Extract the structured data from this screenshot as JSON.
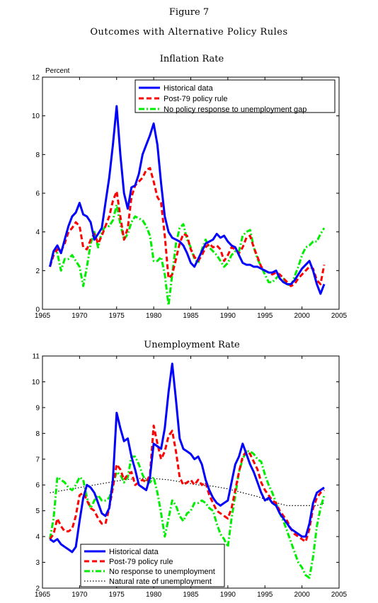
{
  "figure": {
    "number": "Figure 7",
    "title": "Outcomes with Alternative Policy Rules"
  },
  "chart_data": [
    {
      "type": "line",
      "title": "Inflation Rate",
      "ylabel": "Percent",
      "xlabel": "",
      "xlim": [
        1965,
        2005
      ],
      "ylim": [
        0,
        12
      ],
      "xticks": [
        1965,
        1970,
        1975,
        1980,
        1985,
        1990,
        1995,
        2000,
        2005
      ],
      "yticks": [
        0,
        2,
        4,
        6,
        8,
        10,
        12
      ],
      "grid": false,
      "legend": "top-right",
      "series": [
        {
          "name": "Historical data",
          "color": "#0000ff",
          "style": "solid",
          "x": [
            1966,
            1966.5,
            1967,
            1967.5,
            1968,
            1968.5,
            1969,
            1969.5,
            1970,
            1970.5,
            1971,
            1971.5,
            1972,
            1972.5,
            1973,
            1973.5,
            1974,
            1974.5,
            1975,
            1975.5,
            1976,
            1976.5,
            1977,
            1977.5,
            1978,
            1978.5,
            1979,
            1979.5,
            1980,
            1980.5,
            1981,
            1981.5,
            1982,
            1982.5,
            1983,
            1983.5,
            1984,
            1984.5,
            1985,
            1985.5,
            1986,
            1986.5,
            1987,
            1987.5,
            1988,
            1988.5,
            1989,
            1989.5,
            1990,
            1990.5,
            1991,
            1991.5,
            1992,
            1992.5,
            1993,
            1993.5,
            1994,
            1994.5,
            1995,
            1995.5,
            1996,
            1996.5,
            1997,
            1997.5,
            1998,
            1998.5,
            1999,
            1999.5,
            2000,
            2000.5,
            2001,
            2001.5,
            2002,
            2002.5,
            2003
          ],
          "y": [
            2.2,
            3.0,
            3.3,
            2.9,
            3.6,
            4.3,
            4.8,
            5.0,
            5.5,
            4.9,
            4.8,
            4.5,
            3.6,
            3.9,
            4.2,
            5.5,
            6.8,
            8.5,
            10.5,
            8.0,
            6.0,
            5.2,
            6.3,
            6.4,
            7.0,
            8.0,
            8.5,
            9.0,
            9.6,
            8.5,
            6.5,
            4.8,
            4.0,
            3.7,
            3.6,
            3.5,
            3.3,
            2.9,
            2.4,
            2.2,
            2.6,
            3.0,
            3.4,
            3.5,
            3.6,
            3.9,
            3.7,
            3.8,
            3.5,
            3.3,
            3.2,
            2.8,
            2.4,
            2.3,
            2.3,
            2.2,
            2.2,
            2.1,
            2.0,
            1.9,
            1.9,
            2.0,
            1.6,
            1.4,
            1.3,
            1.3,
            1.5,
            1.8,
            2.1,
            2.3,
            2.5,
            2.0,
            1.3,
            0.8,
            1.3
          ]
        },
        {
          "name": "Post-79 policy rule",
          "color": "#ff0000",
          "style": "dashed",
          "x": [
            1966,
            1966.5,
            1967,
            1967.5,
            1968,
            1968.5,
            1969,
            1969.5,
            1970,
            1970.5,
            1971,
            1971.5,
            1972,
            1972.5,
            1973,
            1973.5,
            1974,
            1974.5,
            1975,
            1975.5,
            1976,
            1976.5,
            1977,
            1977.5,
            1978,
            1978.5,
            1979,
            1979.5,
            1980,
            1980.5,
            1981,
            1981.5,
            1982,
            1982.5,
            1983,
            1983.5,
            1984,
            1984.5,
            1985,
            1985.5,
            1986,
            1986.5,
            1987,
            1987.5,
            1988,
            1988.5,
            1989,
            1989.5,
            1990,
            1990.5,
            1991,
            1991.5,
            1992,
            1992.5,
            1993,
            1993.5,
            1994,
            1994.5,
            1995,
            1995.5,
            1996,
            1996.5,
            1997,
            1997.5,
            1998,
            1998.5,
            1999,
            1999.5,
            2000,
            2000.5,
            2001,
            2001.5,
            2002,
            2002.5,
            2003
          ],
          "y": [
            2.2,
            2.8,
            3.1,
            3.0,
            3.4,
            4.0,
            4.2,
            4.5,
            4.3,
            3.2,
            3.1,
            3.6,
            3.9,
            3.4,
            3.8,
            4.3,
            4.8,
            5.6,
            6.1,
            4.8,
            3.6,
            4.2,
            5.8,
            6.4,
            6.6,
            6.8,
            7.2,
            7.3,
            6.6,
            5.8,
            5.5,
            3.8,
            1.6,
            1.8,
            2.6,
            3.4,
            3.9,
            3.8,
            3.1,
            2.7,
            2.5,
            2.8,
            3.2,
            3.4,
            3.2,
            3.3,
            3.1,
            2.5,
            2.8,
            3.2,
            3.1,
            2.9,
            3.2,
            3.7,
            3.8,
            3.2,
            2.7,
            2.2,
            2.0,
            1.9,
            1.8,
            1.9,
            1.8,
            1.6,
            1.4,
            1.2,
            1.3,
            1.6,
            1.8,
            2.0,
            2.2,
            2.1,
            1.5,
            1.3,
            2.3
          ]
        },
        {
          "name": "No policy response to unemployment gap",
          "color": "#00ee00",
          "style": "dashdot",
          "x": [
            1966,
            1966.5,
            1967,
            1967.5,
            1968,
            1968.5,
            1969,
            1969.5,
            1970,
            1970.5,
            1971,
            1971.5,
            1972,
            1972.5,
            1973,
            1973.5,
            1974,
            1974.5,
            1975,
            1975.5,
            1976,
            1976.5,
            1977,
            1977.5,
            1978,
            1978.5,
            1979,
            1979.5,
            1980,
            1980.5,
            1981,
            1981.5,
            1982,
            1982.5,
            1983,
            1983.5,
            1984,
            1984.5,
            1985,
            1985.5,
            1986,
            1986.5,
            1987,
            1987.5,
            1988,
            1988.5,
            1989,
            1989.5,
            1990,
            1990.5,
            1991,
            1991.5,
            1992,
            1992.5,
            1993,
            1993.5,
            1994,
            1994.5,
            1995,
            1995.5,
            1996,
            1996.5,
            1997,
            1997.5,
            1998,
            1998.5,
            1999,
            1999.5,
            2000,
            2000.5,
            2001,
            2001.5,
            2002,
            2002.5,
            2003
          ],
          "y": [
            2.2,
            3.0,
            2.9,
            2.0,
            2.6,
            2.6,
            2.8,
            2.5,
            2.2,
            1.2,
            2.2,
            3.4,
            4.0,
            3.2,
            4.0,
            4.3,
            4.3,
            4.6,
            5.4,
            4.4,
            3.6,
            3.9,
            4.5,
            4.8,
            4.7,
            4.6,
            4.3,
            3.8,
            2.5,
            2.5,
            2.7,
            1.8,
            0.2,
            1.8,
            3.4,
            4.2,
            4.4,
            3.6,
            3.2,
            2.6,
            2.4,
            3.1,
            3.6,
            3.2,
            3.0,
            2.8,
            2.5,
            2.2,
            2.4,
            2.8,
            3.0,
            3.0,
            3.8,
            4.0,
            4.1,
            3.2,
            2.6,
            2.2,
            1.8,
            1.4,
            1.4,
            1.6,
            1.8,
            1.6,
            1.3,
            1.2,
            1.7,
            2.2,
            2.8,
            3.2,
            3.3,
            3.5,
            3.5,
            3.9,
            4.2
          ]
        }
      ]
    },
    {
      "type": "line",
      "title": "Unemployment Rate",
      "ylabel": "",
      "xlabel": "",
      "xlim": [
        1965,
        2005
      ],
      "ylim": [
        2,
        11
      ],
      "xticks": [
        1965,
        1970,
        1975,
        1980,
        1985,
        1990,
        1995,
        2000,
        2005
      ],
      "yticks": [
        2,
        3,
        4,
        5,
        6,
        7,
        8,
        9,
        10,
        11
      ],
      "grid": false,
      "legend": "bottom-left",
      "series": [
        {
          "name": "Historical data",
          "color": "#0000ff",
          "style": "solid",
          "x": [
            1966,
            1966.5,
            1967,
            1967.5,
            1968,
            1968.5,
            1969,
            1969.5,
            1970,
            1970.5,
            1971,
            1971.5,
            1972,
            1972.5,
            1973,
            1973.5,
            1974,
            1974.5,
            1975,
            1975.5,
            1976,
            1976.5,
            1977,
            1977.5,
            1978,
            1978.5,
            1979,
            1979.5,
            1980,
            1980.5,
            1981,
            1981.5,
            1982,
            1982.5,
            1983,
            1983.5,
            1984,
            1984.5,
            1985,
            1985.5,
            1986,
            1986.5,
            1987,
            1987.5,
            1988,
            1988.5,
            1989,
            1989.5,
            1990,
            1990.5,
            1991,
            1991.5,
            1992,
            1992.5,
            1993,
            1993.5,
            1994,
            1994.5,
            1995,
            1995.5,
            1996,
            1996.5,
            1997,
            1997.5,
            1998,
            1998.5,
            1999,
            1999.5,
            2000,
            2000.5,
            2001,
            2001.5,
            2002,
            2002.5,
            2003
          ],
          "y": [
            3.9,
            3.8,
            3.9,
            3.7,
            3.6,
            3.5,
            3.4,
            3.6,
            4.6,
            5.5,
            6.0,
            5.9,
            5.7,
            5.3,
            4.9,
            4.8,
            5.1,
            6.2,
            8.8,
            8.2,
            7.7,
            7.8,
            7.1,
            6.6,
            6.0,
            5.9,
            5.8,
            6.3,
            7.6,
            7.5,
            7.4,
            8.2,
            9.6,
            10.7,
            9.3,
            7.8,
            7.4,
            7.3,
            7.2,
            7.0,
            7.1,
            6.8,
            6.2,
            5.8,
            5.5,
            5.3,
            5.2,
            5.3,
            5.4,
            6.1,
            6.8,
            7.1,
            7.6,
            7.2,
            6.8,
            6.5,
            6.1,
            5.7,
            5.4,
            5.5,
            5.3,
            5.2,
            4.9,
            4.7,
            4.5,
            4.3,
            4.2,
            4.1,
            4.0,
            4.0,
            4.5,
            5.3,
            5.7,
            5.8,
            5.9
          ]
        },
        {
          "name": "Post-79 policy rule",
          "color": "#ff0000",
          "style": "dashed",
          "x": [
            1966,
            1966.5,
            1967,
            1967.5,
            1968,
            1968.5,
            1969,
            1969.5,
            1970,
            1970.5,
            1971,
            1971.5,
            1972,
            1972.5,
            1973,
            1973.5,
            1974,
            1974.5,
            1975,
            1975.5,
            1976,
            1976.5,
            1977,
            1977.5,
            1978,
            1978.5,
            1979,
            1979.5,
            1980,
            1980.5,
            1981,
            1981.5,
            1982,
            1982.5,
            1983,
            1983.5,
            1984,
            1984.5,
            1985,
            1985.5,
            1986,
            1986.5,
            1987,
            1987.5,
            1988,
            1988.5,
            1989,
            1989.5,
            1990,
            1990.5,
            1991,
            1991.5,
            1992,
            1992.5,
            1993,
            1993.5,
            1994,
            1994.5,
            1995,
            1995.5,
            1996,
            1996.5,
            1997,
            1997.5,
            1998,
            1998.5,
            1999,
            1999.5,
            2000,
            2000.5,
            2001,
            2001.5,
            2002,
            2002.5,
            2003
          ],
          "y": [
            3.9,
            4.1,
            4.7,
            4.4,
            4.2,
            4.2,
            4.3,
            4.8,
            5.6,
            5.7,
            5.4,
            5.1,
            5.0,
            4.7,
            4.5,
            4.5,
            5.1,
            5.9,
            6.8,
            6.6,
            6.2,
            6.4,
            6.5,
            6.0,
            6.1,
            6.2,
            6.1,
            6.4,
            8.3,
            7.6,
            7.0,
            7.3,
            7.9,
            8.1,
            7.3,
            6.3,
            6.0,
            6.1,
            6.2,
            6.0,
            6.2,
            6.0,
            6.1,
            5.6,
            5.3,
            5.0,
            4.9,
            4.8,
            4.7,
            5.1,
            5.8,
            6.5,
            7.1,
            7.3,
            7.2,
            6.9,
            6.6,
            6.1,
            5.8,
            5.6,
            5.4,
            5.3,
            5.0,
            4.8,
            4.6,
            4.3,
            4.1,
            4.0,
            3.9,
            3.8,
            4.3,
            5.1,
            5.5,
            5.7,
            5.8
          ]
        },
        {
          "name": "No response to unemployment",
          "color": "#00ee00",
          "style": "dashdot",
          "x": [
            1966,
            1966.5,
            1967,
            1967.5,
            1968,
            1968.5,
            1969,
            1969.5,
            1970,
            1970.5,
            1971,
            1971.5,
            1972,
            1972.5,
            1973,
            1973.5,
            1974,
            1974.5,
            1975,
            1975.5,
            1976,
            1976.5,
            1977,
            1977.5,
            1978,
            1978.5,
            1979,
            1979.5,
            1980,
            1980.5,
            1981,
            1981.5,
            1982,
            1982.5,
            1983,
            1983.5,
            1984,
            1984.5,
            1985,
            1985.5,
            1986,
            1986.5,
            1987,
            1987.5,
            1988,
            1988.5,
            1989,
            1989.5,
            1990,
            1990.5,
            1991,
            1991.5,
            1992,
            1992.5,
            1993,
            1993.5,
            1994,
            1994.5,
            1995,
            1995.5,
            1996,
            1996.5,
            1997,
            1997.5,
            1998,
            1998.5,
            1999,
            1999.5,
            2000,
            2000.5,
            2001,
            2001.5,
            2002,
            2002.5,
            2003
          ],
          "y": [
            3.9,
            4.7,
            6.3,
            6.2,
            6.1,
            5.9,
            5.8,
            6.0,
            6.3,
            6.2,
            5.5,
            5.1,
            5.4,
            5.6,
            5.4,
            5.4,
            5.5,
            6.0,
            6.5,
            6.4,
            6.1,
            6.3,
            7.1,
            7.1,
            6.8,
            6.4,
            6.1,
            6.1,
            6.3,
            5.7,
            4.9,
            4.0,
            4.7,
            5.4,
            5.2,
            4.8,
            4.6,
            4.9,
            5.0,
            5.3,
            5.3,
            5.4,
            5.3,
            5.1,
            5.0,
            4.5,
            4.1,
            3.9,
            3.6,
            4.7,
            5.6,
            6.5,
            7.0,
            7.3,
            7.3,
            7.2,
            7.0,
            6.9,
            6.4,
            6.0,
            5.7,
            5.3,
            4.9,
            4.6,
            4.2,
            3.8,
            3.4,
            3.0,
            2.8,
            2.5,
            2.4,
            3.2,
            4.4,
            5.1,
            5.6
          ]
        },
        {
          "name": "Natural rate of unemployment",
          "color": "#000000",
          "style": "dotted",
          "x": [
            1966,
            1968,
            1970,
            1972,
            1974,
            1976,
            1978,
            1980,
            1982,
            1984,
            1986,
            1988,
            1990,
            1992,
            1994,
            1996,
            1998,
            2000,
            2002,
            2003
          ],
          "y": [
            5.7,
            5.8,
            5.9,
            6.0,
            6.1,
            6.2,
            6.25,
            6.25,
            6.2,
            6.1,
            6.0,
            5.95,
            5.85,
            5.7,
            5.55,
            5.35,
            5.2,
            5.2,
            5.2,
            5.3
          ]
        }
      ]
    }
  ]
}
